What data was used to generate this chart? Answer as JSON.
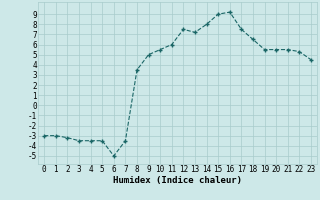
{
  "x": [
    0,
    1,
    2,
    3,
    4,
    5,
    6,
    7,
    8,
    9,
    10,
    11,
    12,
    13,
    14,
    15,
    16,
    17,
    18,
    19,
    20,
    21,
    22,
    23
  ],
  "y": [
    -3,
    -3,
    -3.2,
    -3.5,
    -3.5,
    -3.5,
    -5,
    -3.5,
    3.5,
    5,
    5.5,
    6,
    7.5,
    7.2,
    8,
    9,
    9.2,
    7.5,
    6.5,
    5.5,
    5.5,
    5.5,
    5.3,
    4.5
  ],
  "xlabel": "Humidex (Indice chaleur)",
  "bg_color": "#cde8e8",
  "grid_color": "#a8cccc",
  "line_color": "#1a6666",
  "marker_color": "#1a6666",
  "ylim": [
    -5.8,
    10.2
  ],
  "xlim": [
    -0.5,
    23.5
  ],
  "yticks": [
    -5,
    -4,
    -3,
    -2,
    -1,
    0,
    1,
    2,
    3,
    4,
    5,
    6,
    7,
    8,
    9
  ],
  "xticks": [
    0,
    1,
    2,
    3,
    4,
    5,
    6,
    7,
    8,
    9,
    10,
    11,
    12,
    13,
    14,
    15,
    16,
    17,
    18,
    19,
    20,
    21,
    22,
    23
  ],
  "tick_fontsize": 5.5,
  "xlabel_fontsize": 6.5
}
